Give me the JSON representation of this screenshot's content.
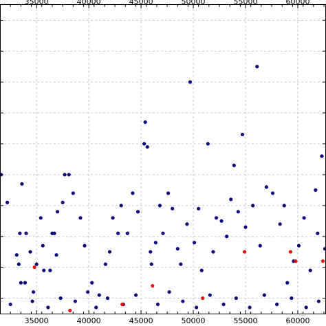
{
  "chart_data": {
    "type": "scatter",
    "title": "",
    "xlabel": "",
    "ylabel": "",
    "xlim": [
      31500,
      62700
    ],
    "ylim": [
      0,
      10
    ],
    "x_ticks": [
      35000,
      40000,
      45000,
      50000,
      55000,
      60000
    ],
    "x_tick_labels": [
      "35000",
      "40000",
      "45000",
      "50000",
      "55000",
      "60000"
    ],
    "y_gridlines": [
      0.5,
      1.5,
      2.5,
      3.5,
      4.5,
      5.5,
      6.5,
      7.5,
      8.5,
      9.5
    ],
    "grid": true,
    "colors": {
      "series_blue": "#0a0a7a",
      "series_red": "#e8100c"
    },
    "series": [
      {
        "color": "#0a0a7a",
        "points": [
          [
            31600,
            4.5
          ],
          [
            33600,
            4.2
          ],
          [
            33400,
            2.6
          ],
          [
            32200,
            3.6
          ],
          [
            33100,
            1.9
          ],
          [
            33300,
            1.6
          ],
          [
            33500,
            1.0
          ],
          [
            33900,
            1.0
          ],
          [
            34000,
            2.6
          ],
          [
            34400,
            2.0
          ],
          [
            34600,
            0.4
          ],
          [
            35000,
            1.6
          ],
          [
            35400,
            3.1
          ],
          [
            35600,
            2.2
          ],
          [
            35700,
            1.4
          ],
          [
            36300,
            1.4
          ],
          [
            36500,
            2.6
          ],
          [
            36700,
            2.6
          ],
          [
            36900,
            1.9
          ],
          [
            37000,
            3.3
          ],
          [
            37500,
            3.6
          ],
          [
            37700,
            4.5
          ],
          [
            38100,
            4.5
          ],
          [
            38500,
            3.9
          ],
          [
            39200,
            3.1
          ],
          [
            39600,
            2.2
          ],
          [
            40300,
            1.0
          ],
          [
            41000,
            0.6
          ],
          [
            41600,
            1.6
          ],
          [
            42000,
            2.0
          ],
          [
            42300,
            3.1
          ],
          [
            42800,
            2.6
          ],
          [
            43100,
            3.5
          ],
          [
            43700,
            2.6
          ],
          [
            44200,
            3.9
          ],
          [
            44700,
            3.3
          ],
          [
            45300,
            5.5
          ],
          [
            45400,
            6.2
          ],
          [
            45600,
            5.4
          ],
          [
            45900,
            2.0
          ],
          [
            46000,
            1.6
          ],
          [
            46400,
            2.3
          ],
          [
            46800,
            3.5
          ],
          [
            47100,
            2.6
          ],
          [
            47600,
            3.9
          ],
          [
            48000,
            3.4
          ],
          [
            48500,
            2.1
          ],
          [
            48800,
            1.6
          ],
          [
            49400,
            2.9
          ],
          [
            49700,
            7.5
          ],
          [
            50100,
            2.3
          ],
          [
            50500,
            3.4
          ],
          [
            50800,
            1.4
          ],
          [
            51400,
            5.5
          ],
          [
            51900,
            2.0
          ],
          [
            52200,
            3.1
          ],
          [
            52700,
            3.0
          ],
          [
            53200,
            2.5
          ],
          [
            53600,
            3.7
          ],
          [
            53900,
            4.8
          ],
          [
            54300,
            3.3
          ],
          [
            54700,
            5.8
          ],
          [
            55000,
            2.8
          ],
          [
            55700,
            3.5
          ],
          [
            56100,
            8.0
          ],
          [
            56400,
            2.2
          ],
          [
            57000,
            4.1
          ],
          [
            57600,
            3.9
          ],
          [
            58300,
            2.9
          ],
          [
            58700,
            3.5
          ],
          [
            59000,
            1.0
          ],
          [
            59600,
            1.7
          ],
          [
            60100,
            2.2
          ],
          [
            60600,
            3.1
          ],
          [
            61200,
            1.4
          ],
          [
            61700,
            4.0
          ],
          [
            61900,
            2.6
          ],
          [
            62300,
            5.1
          ],
          [
            62600,
            2.1
          ],
          [
            32500,
            0.3
          ],
          [
            34700,
            0.7
          ],
          [
            36100,
            0.2
          ],
          [
            37300,
            0.5
          ],
          [
            38700,
            0.4
          ],
          [
            39900,
            0.7
          ],
          [
            40700,
            0.2
          ],
          [
            41800,
            0.5
          ],
          [
            43300,
            0.3
          ],
          [
            44500,
            0.6
          ],
          [
            46600,
            0.3
          ],
          [
            47700,
            0.7
          ],
          [
            49000,
            0.4
          ],
          [
            50300,
            0.2
          ],
          [
            51600,
            0.6
          ],
          [
            52900,
            0.3
          ],
          [
            54100,
            0.5
          ],
          [
            55400,
            0.2
          ],
          [
            56800,
            0.6
          ],
          [
            58000,
            0.3
          ],
          [
            59400,
            0.5
          ],
          [
            60800,
            0.2
          ],
          [
            62000,
            0.4
          ]
        ]
      },
      {
        "color": "#e8100c",
        "points": [
          [
            34800,
            1.5
          ],
          [
            38200,
            0.1
          ],
          [
            43200,
            0.3
          ],
          [
            46100,
            0.9
          ],
          [
            50900,
            0.5
          ],
          [
            54900,
            2.0
          ],
          [
            59300,
            2.0
          ],
          [
            59800,
            1.7
          ],
          [
            62400,
            1.7
          ]
        ]
      }
    ]
  }
}
